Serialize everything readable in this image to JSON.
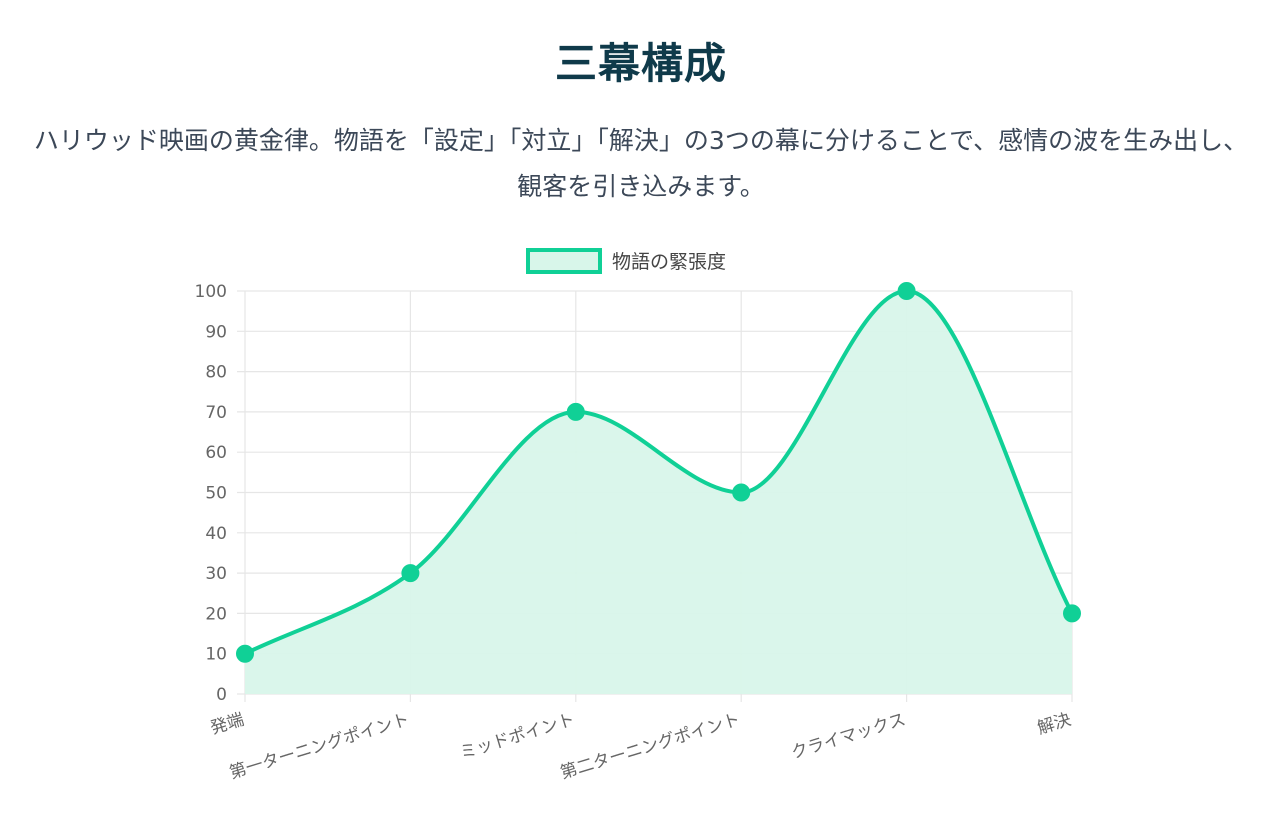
{
  "header": {
    "title": "三幕構成",
    "description": "ハリウッド映画の黄金律。物語を「設定」「対立」「解決」の3つの幕に分けることで、感情の波を生み出し、観客を引き込みます。"
  },
  "colors": {
    "title": "#0f3a4a",
    "description": "#3c4858",
    "line": "#10d096",
    "fill": "#d8f6ea",
    "grid": "#e6e6e6"
  },
  "chart_data": {
    "type": "line",
    "title": "",
    "xlabel": "",
    "ylabel": "",
    "categories": [
      "発端",
      "第一ターニングポイント",
      "ミッドポイント",
      "第二ターニングポイント",
      "クライマックス",
      "解決"
    ],
    "series": [
      {
        "name": "物語の緊張度",
        "values": [
          10,
          30,
          70,
          50,
          100,
          20
        ]
      }
    ],
    "ylim": [
      0,
      100
    ],
    "yticks": [
      0,
      10,
      20,
      30,
      40,
      50,
      60,
      70,
      80,
      90,
      100
    ],
    "grid": true,
    "legend": "top-center",
    "fill": true,
    "smooth": true
  }
}
